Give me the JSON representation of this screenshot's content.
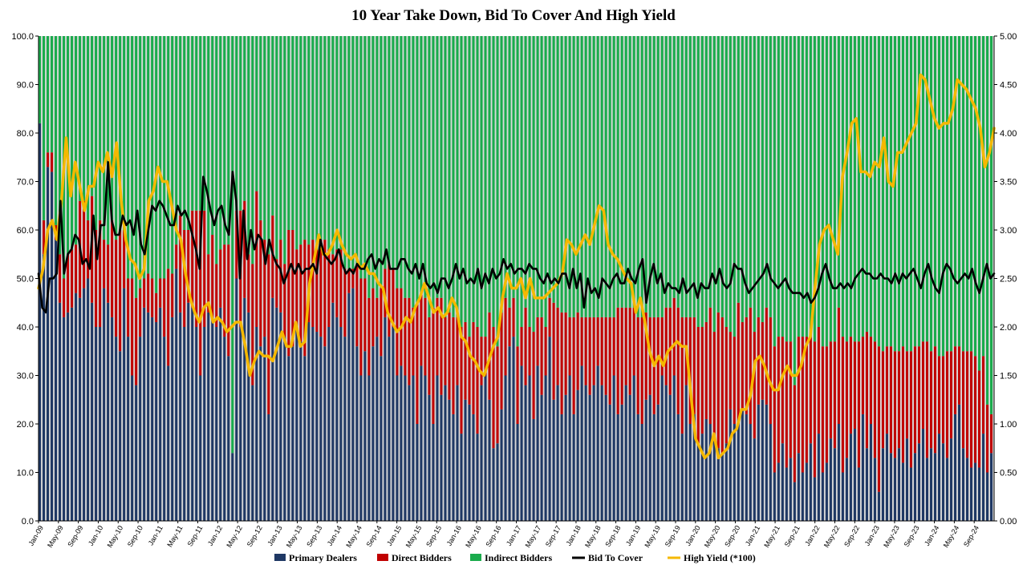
{
  "chart_data": {
    "type": "bar",
    "stacked": true,
    "title": "10 Year Take Down, Bid To Cover And High Yield",
    "xlabel": "",
    "ylabel": "",
    "ylim": [
      0,
      100
    ],
    "ylim_right": [
      0,
      5
    ],
    "y_ticks": [
      "0.0",
      "10.0",
      "20.0",
      "30.0",
      "40.0",
      "50.0",
      "60.0",
      "70.0",
      "80.0",
      "90.0",
      "100.0"
    ],
    "y_ticks_right": [
      "0.00",
      "0.50",
      "1.00",
      "1.50",
      "2.00",
      "2.50",
      "3.00",
      "3.50",
      "4.00",
      "4.50",
      "5.00"
    ],
    "x_labels": [
      "Jan-09",
      "May-09",
      "Sep-09",
      "Jan-10",
      "May-10",
      "Sep-10",
      "Jan-11",
      "May-11",
      "Sep-11",
      "Jan-12",
      "May-12",
      "Sep-12",
      "Jan-13",
      "May-13",
      "Sep-13",
      "Jan-14",
      "May-14",
      "Sep-14",
      "Jan-15",
      "May-15",
      "Sep-15",
      "Jan-16",
      "May-16",
      "Sep-16",
      "Jan-17",
      "May-17",
      "Sep-17",
      "Jan-18",
      "May-18",
      "Sep-18",
      "Jan-19",
      "May-19",
      "Sep-19",
      "Jan-20",
      "May-20",
      "Sep-20",
      "Jan-21",
      "May-21",
      "Sep-21",
      "Jan-22",
      "May-22",
      "Sep-22",
      "Jan-23",
      "May-23",
      "Sep-23",
      "Jan-24",
      "May-24",
      "Sep-24"
    ],
    "grid": false,
    "legend_position": "bottom",
    "legend": [
      "Primary Dealers",
      "Direct Bidders",
      "Indirect Bidders",
      "Bid To Cover",
      "High Yield (*100)"
    ],
    "colors": {
      "primary": "#1f3864",
      "direct": "#c00000",
      "indirect": "#1aab4c",
      "btc": "#000000",
      "yield": "#f5b800",
      "stripe": "#d9d9d9"
    },
    "series": [
      {
        "name": "Primary Dealers",
        "axis": "left",
        "kind": "bar",
        "values": [
          82,
          55,
          73,
          72,
          58,
          45,
          42,
          43,
          44,
          47,
          46,
          48,
          50,
          45,
          40,
          40,
          48,
          45,
          42,
          38,
          35,
          48,
          38,
          30,
          28,
          38,
          44,
          43,
          42,
          41,
          44,
          38,
          32,
          42,
          52,
          43,
          40,
          45,
          44,
          40,
          30,
          40,
          43,
          42,
          40,
          44,
          38,
          34,
          14,
          50,
          40,
          46,
          43,
          28,
          40,
          36,
          38,
          22,
          46,
          44,
          43,
          38,
          34,
          36,
          40,
          37,
          34,
          41,
          40,
          39,
          38,
          36,
          40,
          45,
          42,
          40,
          38,
          47,
          48,
          36,
          30,
          35,
          30,
          36,
          38,
          34,
          42,
          38,
          40,
          30,
          32,
          30,
          28,
          30,
          20,
          32,
          30,
          26,
          20,
          30,
          26,
          28,
          25,
          22,
          28,
          18,
          25,
          24,
          22,
          18,
          28,
          30,
          25,
          15,
          16,
          23,
          30,
          36,
          38,
          20,
          32,
          28,
          30,
          21,
          32,
          26,
          30,
          38,
          25,
          28,
          22,
          26,
          30,
          22,
          27,
          32,
          28,
          26,
          28,
          32,
          28,
          26,
          24,
          30,
          22,
          24,
          28,
          26,
          30,
          22,
          20,
          25,
          26,
          22,
          24,
          30,
          28,
          26,
          30,
          22,
          18,
          28,
          20,
          22,
          16,
          18,
          21,
          20,
          17,
          15,
          14,
          16,
          23,
          20,
          21,
          23,
          22,
          20,
          17,
          24,
          25,
          24,
          20,
          10,
          12,
          16,
          11,
          13,
          8,
          14,
          10,
          12,
          16,
          9,
          18,
          10,
          12,
          17,
          15,
          20,
          10,
          13,
          18,
          19,
          11,
          22,
          15,
          20,
          13,
          6,
          15,
          18,
          14,
          13,
          15,
          12,
          17,
          11,
          14,
          16,
          19,
          13,
          15,
          14,
          18,
          16,
          13,
          17,
          22,
          24,
          15,
          13,
          11,
          12,
          11,
          18,
          10,
          14
        ]
      },
      {
        "name": "Direct Bidders",
        "axis": "left",
        "kind": "bar",
        "values": [
          0,
          7,
          3,
          4,
          3,
          10,
          8,
          12,
          12,
          10,
          20,
          18,
          12,
          22,
          20,
          22,
          10,
          12,
          20,
          20,
          25,
          12,
          12,
          20,
          18,
          10,
          6,
          8,
          8,
          6,
          6,
          12,
          20,
          9,
          5,
          20,
          20,
          15,
          20,
          24,
          34,
          24,
          12,
          17,
          13,
          12,
          19,
          23,
          0,
          14,
          24,
          20,
          12,
          25,
          28,
          26,
          20,
          33,
          17,
          10,
          15,
          15,
          26,
          24,
          16,
          20,
          24,
          16,
          18,
          17,
          20,
          22,
          16,
          10,
          14,
          16,
          14,
          5,
          4,
          17,
          20,
          15,
          16,
          12,
          8,
          14,
          10,
          15,
          12,
          18,
          16,
          16,
          18,
          14,
          25,
          15,
          16,
          16,
          24,
          16,
          20,
          14,
          18,
          20,
          14,
          22,
          16,
          14,
          19,
          22,
          10,
          8,
          18,
          25,
          20,
          20,
          16,
          8,
          8,
          16,
          8,
          16,
          10,
          18,
          10,
          16,
          10,
          8,
          20,
          16,
          21,
          17,
          12,
          20,
          16,
          10,
          14,
          16,
          14,
          10,
          14,
          16,
          18,
          12,
          22,
          20,
          16,
          18,
          14,
          20,
          22,
          18,
          16,
          20,
          18,
          12,
          16,
          18,
          16,
          22,
          24,
          14,
          22,
          20,
          24,
          22,
          20,
          24,
          22,
          28,
          28,
          24,
          16,
          18,
          24,
          18,
          20,
          24,
          22,
          18,
          16,
          20,
          22,
          26,
          26,
          22,
          26,
          24,
          20,
          24,
          28,
          26,
          22,
          28,
          22,
          26,
          24,
          20,
          22,
          24,
          28,
          24,
          20,
          18,
          26,
          16,
          24,
          18,
          24,
          30,
          20,
          18,
          22,
          22,
          20,
          24,
          18,
          24,
          22,
          20,
          18,
          24,
          20,
          22,
          16,
          18,
          22,
          18,
          14,
          12,
          20,
          22,
          24,
          22,
          20,
          16,
          14,
          8
        ]
      }
    ],
    "bid_to_cover": [
      2.55,
      2.2,
      2.15,
      2.5,
      2.5,
      2.55,
      3.3,
      2.55,
      2.75,
      2.8,
      2.95,
      2.9,
      2.65,
      2.7,
      2.6,
      3.15,
      2.7,
      3.05,
      3.05,
      3.7,
      3.1,
      2.95,
      2.95,
      3.15,
      3.05,
      3.1,
      2.95,
      3.2,
      2.85,
      2.75,
      3,
      3.25,
      3.2,
      3.3,
      3.25,
      3.15,
      3.05,
      3.05,
      3.25,
      3.15,
      3.2,
      3.1,
      2.95,
      2.8,
      2.6,
      3.55,
      3.4,
      3.2,
      3.05,
      3.2,
      3.25,
      3.05,
      2.95,
      3.6,
      3.3,
      2.5,
      3.2,
      2.7,
      3,
      2.8,
      2.95,
      2.9,
      2.65,
      2.9,
      2.75,
      2.65,
      2.6,
      2.45,
      2.55,
      2.65,
      2.55,
      2.65,
      2.55,
      2.6,
      2.6,
      2.65,
      2.55,
      2.9,
      2.75,
      2.7,
      2.65,
      2.7,
      2.8,
      2.65,
      2.55,
      2.6,
      2.55,
      2.65,
      2.6,
      2.6,
      2.7,
      2.75,
      2.6,
      2.7,
      2.65,
      2.8,
      2.6,
      2.6,
      2.6,
      2.7,
      2.7,
      2.6,
      2.55,
      2.65,
      2.5,
      2.65,
      2.45,
      2.4,
      2.45,
      2.35,
      2.5,
      2.5,
      2.4,
      2.5,
      2.65,
      2.5,
      2.6,
      2.45,
      2.5,
      2.45,
      2.6,
      2.4,
      2.55,
      2.45,
      2.6,
      2.5,
      2.55,
      2.7,
      2.6,
      2.65,
      2.55,
      2.6,
      2.6,
      2.55,
      2.65,
      2.6,
      2.6,
      2.5,
      2.45,
      2.55,
      2.45,
      2.5,
      2.45,
      2.55,
      2.55,
      2.4,
      2.6,
      2.4,
      2.55,
      2.2,
      2.5,
      2.35,
      2.4,
      2.3,
      2.5,
      2.45,
      2.4,
      2.5,
      2.55,
      2.45,
      2.45,
      2.6,
      2.5,
      2.45,
      2.6,
      2.7,
      2.25,
      2.5,
      2.65,
      2.45,
      2.55,
      2.35,
      2.45,
      2.4,
      2.4,
      2.35,
      2.5,
      2.35,
      2.4,
      2.45,
      2.3,
      2.45,
      2.4,
      2.4,
      2.55,
      2.45,
      2.6,
      2.45,
      2.4,
      2.45,
      2.65,
      2.6,
      2.6,
      2.45,
      2.35,
      2.4,
      2.45,
      2.5,
      2.55,
      2.65,
      2.5,
      2.45,
      2.4,
      2.45,
      2.5,
      2.4,
      2.35,
      2.35,
      2.35,
      2.3,
      2.35,
      2.25,
      2.3,
      2.4,
      2.55,
      2.65,
      2.5,
      2.4,
      2.4,
      2.45,
      2.4,
      2.45,
      2.4,
      2.5,
      2.55,
      2.6,
      2.55,
      2.55,
      2.5,
      2.5,
      2.55,
      2.5,
      2.5,
      2.45,
      2.55,
      2.45,
      2.55,
      2.5,
      2.55,
      2.6,
      2.5,
      2.4,
      2.55,
      2.65,
      2.5,
      2.4,
      2.35,
      2.55,
      2.65,
      2.6,
      2.5,
      2.45,
      2.5,
      2.55,
      2.5,
      2.6,
      2.45,
      2.35,
      2.5,
      2.65,
      2.5,
      2.55
    ],
    "high_yield": [
      2.4,
      2.6,
      3,
      3.1,
      2.9,
      3.3,
      3.95,
      3.35,
      3.7,
      3.45,
      3.2,
      3.45,
      3.45,
      3.7,
      3.6,
      3.8,
      3.55,
      3.9,
      3.3,
      2.9,
      2.7,
      2.65,
      2.5,
      2.6,
      3.3,
      3.4,
      3.65,
      3.5,
      3.5,
      3.25,
      3,
      2.9,
      2.55,
      2.3,
      2.15,
      2.05,
      2.2,
      2.25,
      2.05,
      2.1,
      2.05,
      1.95,
      2,
      2.05,
      2.05,
      1.8,
      1.5,
      1.65,
      1.75,
      1.7,
      1.7,
      1.65,
      1.8,
      1.95,
      1.8,
      1.8,
      2.05,
      1.8,
      1.85,
      2.45,
      2.7,
      2.95,
      2.75,
      2.75,
      2.85,
      3,
      2.85,
      2.75,
      2.7,
      2.75,
      2.6,
      2.65,
      2.55,
      2.55,
      2.45,
      2.4,
      2.15,
      2.05,
      1.95,
      2,
      2.1,
      2.05,
      2.2,
      2.3,
      2.45,
      2.3,
      2.15,
      2.2,
      2.1,
      2.15,
      2.3,
      2.2,
      1.9,
      1.85,
      1.7,
      1.65,
      1.55,
      1.5,
      1.65,
      1.8,
      1.9,
      2.3,
      2.55,
      2.4,
      2.4,
      2.5,
      2.3,
      2.5,
      2.3,
      2.3,
      2.3,
      2.35,
      2.4,
      2.45,
      2.55,
      2.9,
      2.85,
      2.75,
      2.85,
      2.95,
      2.85,
      3.05,
      3.25,
      3.2,
      2.85,
      2.75,
      2.7,
      2.6,
      2.5,
      2.45,
      2.15,
      2.3,
      2.05,
      1.75,
      1.6,
      1.7,
      1.6,
      1.75,
      1.8,
      1.85,
      1.8,
      1.8,
      1.3,
      0.85,
      0.75,
      0.65,
      0.7,
      0.9,
      0.65,
      0.7,
      0.75,
      0.9,
      0.95,
      1.15,
      1.15,
      1.3,
      1.65,
      1.7,
      1.6,
      1.45,
      1.35,
      1.35,
      1.5,
      1.6,
      1.5,
      1.5,
      1.6,
      1.8,
      1.9,
      2.4,
      2.85,
      3,
      3.05,
      2.9,
      2.75,
      3.55,
      3.8,
      4.1,
      4.15,
      3.6,
      3.6,
      3.55,
      3.7,
      3.65,
      3.95,
      3.5,
      3.45,
      3.8,
      3.8,
      3.9,
      4.0,
      4.1,
      4.6,
      4.55,
      4.35,
      4.15,
      4.05,
      4.1,
      4.1,
      4.25,
      4.55,
      4.5,
      4.45,
      4.35,
      4.25,
      4.05,
      3.65,
      3.8,
      4.05
    ]
  }
}
